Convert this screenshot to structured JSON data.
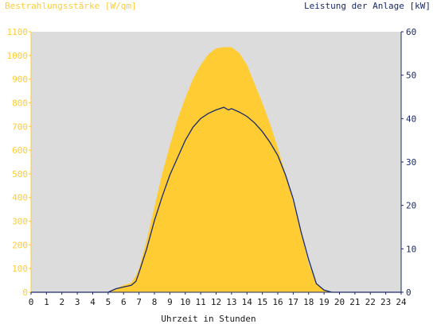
{
  "chart_data": {
    "type": "area",
    "left_axis_title": "Bestrahlungsstärke [W/qm]",
    "right_axis_title": "Leistung der Anlage [kW]",
    "xlabel": "Uhrzeit in Stunden",
    "xlim": [
      0,
      24
    ],
    "ylim_left": [
      0,
      1100
    ],
    "ylim_right": [
      0,
      60
    ],
    "x_ticks": [
      "0",
      "1",
      "2",
      "3",
      "4",
      "5",
      "6",
      "7",
      "8",
      "9",
      "10",
      "11",
      "12",
      "13",
      "14",
      "15",
      "16",
      "17",
      "18",
      "19",
      "20",
      "21",
      "22",
      "23",
      "24"
    ],
    "y_left_ticks": [
      "0",
      "100",
      "200",
      "300",
      "400",
      "500",
      "600",
      "700",
      "800",
      "900",
      "1000",
      "1100"
    ],
    "y_right_ticks": [
      "0",
      "10",
      "20",
      "30",
      "40",
      "50",
      "60"
    ],
    "grid": false,
    "colors": {
      "plot_background": "#dcdcdc",
      "irradiance_fill": "#ffcc33",
      "irradiance_axis": "#ffcc33",
      "power_line": "#1a2a6c",
      "power_axis": "#1a2a6c"
    },
    "series": [
      {
        "axis": "left",
        "x": [
          0,
          5.0,
          5.5,
          6.0,
          6.5,
          6.8,
          7.0,
          7.5,
          8.0,
          8.5,
          9.0,
          9.5,
          10.0,
          10.5,
          11.0,
          11.5,
          12.0,
          12.5,
          13.0,
          13.5,
          14.0,
          14.5,
          15.0,
          15.5,
          16.0,
          16.5,
          17.0,
          17.5,
          18.0,
          18.5,
          19.0,
          19.5,
          20.0,
          24
        ],
        "values": [
          0,
          0,
          15,
          30,
          40,
          70,
          100,
          220,
          360,
          500,
          620,
          730,
          820,
          900,
          960,
          1005,
          1030,
          1035,
          1035,
          1010,
          960,
          880,
          800,
          710,
          610,
          500,
          380,
          250,
          120,
          40,
          10,
          0,
          0,
          0
        ]
      },
      {
        "axis": "right",
        "x": [
          0,
          5.0,
          5.5,
          6.0,
          6.5,
          6.8,
          7.0,
          7.5,
          8.0,
          8.5,
          9.0,
          9.5,
          10.0,
          10.5,
          11.0,
          11.5,
          12.0,
          12.5,
          12.8,
          13.0,
          13.5,
          14.0,
          14.5,
          15.0,
          15.5,
          16.0,
          16.5,
          17.0,
          17.5,
          18.0,
          18.5,
          19.0,
          19.5,
          20.0,
          24
        ],
        "values": [
          0,
          0,
          0.8,
          1.2,
          1.6,
          2.5,
          4.5,
          10,
          16.5,
          22,
          27,
          31,
          35,
          38,
          40,
          41.2,
          42,
          42.6,
          42,
          42.3,
          41.5,
          40.5,
          39,
          37,
          34.5,
          31.5,
          27,
          21.5,
          14,
          7.5,
          2,
          0.5,
          0,
          0,
          0
        ]
      }
    ]
  }
}
